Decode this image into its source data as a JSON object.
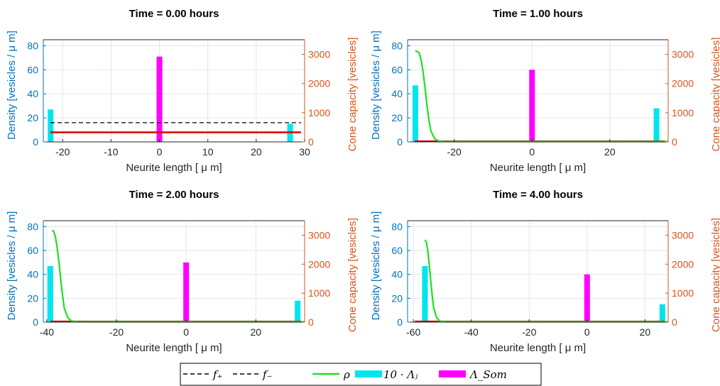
{
  "legend": {
    "items": [
      {
        "label": "f₊",
        "style": "dashed",
        "color": "#000000"
      },
      {
        "label": "f₋",
        "style": "dashed",
        "color": "#000000"
      },
      {
        "label": "ρ",
        "style": "line",
        "color": "#22dd22"
      },
      {
        "label": "10 · Λⱼ",
        "style": "bar",
        "color": "#00e5ee"
      },
      {
        "label": "Λ_Som",
        "style": "bar",
        "color": "#ff00ff"
      }
    ]
  },
  "colors": {
    "left_axis": "#0072bd",
    "right_axis": "#d95319",
    "grid": "#dfe7f0",
    "rho": "#22dd22",
    "lambda_j": "#00e5ee",
    "lambda_som": "#ff00ff",
    "red_line": "#dd0000",
    "dashed": "#000000"
  },
  "chart_data": [
    {
      "type": "bar",
      "title": "Time = 0.00 hours",
      "xlabel": "Neurite length [    μ m]",
      "ylabel": "Density [vesicles /      μ m]",
      "y2label": "Cone capacity [vesicles]",
      "xlim": [
        -24,
        30
      ],
      "xticks": [
        -20,
        -10,
        0,
        10,
        20,
        30
      ],
      "ylim": [
        0,
        85
      ],
      "yticks": [
        0,
        20,
        40,
        60,
        80
      ],
      "y2lim": [
        0,
        3500
      ],
      "y2ticks": [
        0,
        1000,
        2000,
        3000
      ],
      "grid": true,
      "lambda_j": [
        {
          "x": -22.5,
          "value": 27
        },
        {
          "x": 27,
          "value": 15
        }
      ],
      "lambda_som": {
        "x": 0,
        "value": 71
      },
      "f_plus": {
        "value": 16
      },
      "red_line": {
        "value": 8
      },
      "rho": {
        "x": [],
        "y": []
      }
    },
    {
      "type": "bar",
      "title": "Time = 1.00 hours",
      "xlabel": "Neurite length [    μ m]",
      "ylabel": "Density [vesicles /      μ m]",
      "y2label": "Cone capacity [vesicles]",
      "xlim": [
        -32,
        35
      ],
      "xticks": [
        -20,
        0,
        20
      ],
      "ylim": [
        0,
        85
      ],
      "yticks": [
        0,
        20,
        40,
        60,
        80
      ],
      "y2lim": [
        0,
        3500
      ],
      "y2ticks": [
        0,
        1000,
        2000,
        3000
      ],
      "grid": true,
      "lambda_j": [
        {
          "x": -30,
          "value": 47
        },
        {
          "x": 32,
          "value": 28
        }
      ],
      "lambda_som": {
        "x": 0,
        "value": 60
      },
      "f_plus": null,
      "red_line": {
        "value": 0.5
      },
      "rho": {
        "x": [
          -30,
          -29,
          -28.5,
          -28,
          -27.5,
          -27,
          -26.5,
          -26,
          -25,
          -24,
          -23,
          -20,
          35
        ],
        "y": [
          76,
          74,
          68,
          58,
          45,
          30,
          18,
          9,
          2.5,
          0.8,
          0.4,
          0.3,
          0.3
        ]
      }
    },
    {
      "type": "bar",
      "title": "Time = 2.00 hours",
      "xlabel": "Neurite length [    μ m]",
      "ylabel": "Density [vesicles /      μ m]",
      "y2label": "Cone capacity [vesicles]",
      "xlim": [
        -41,
        34
      ],
      "xticks": [
        -40,
        -20,
        0,
        20
      ],
      "ylim": [
        0,
        85
      ],
      "yticks": [
        0,
        20,
        40,
        60,
        80
      ],
      "y2lim": [
        0,
        3500
      ],
      "y2ticks": [
        0,
        1000,
        2000,
        3000
      ],
      "grid": true,
      "lambda_j": [
        {
          "x": -39,
          "value": 47
        },
        {
          "x": 32,
          "value": 18
        }
      ],
      "lambda_som": {
        "x": 0,
        "value": 50
      },
      "f_plus": null,
      "red_line": {
        "value": 0.5
      },
      "rho": {
        "x": [
          -38.5,
          -38,
          -37.5,
          -37,
          -36.5,
          -36,
          -35.5,
          -35,
          -34,
          -33,
          -32,
          -30,
          34
        ],
        "y": [
          77,
          76,
          71,
          62,
          50,
          36,
          23,
          12,
          4,
          1.2,
          0.5,
          0.3,
          0.3
        ]
      }
    },
    {
      "type": "bar",
      "title": "Time = 4.00 hours",
      "xlabel": "Neurite length [    μ m]",
      "ylabel": "Density [vesicles /      μ m]",
      "y2label": "Cone capacity [vesicles]",
      "xlim": [
        -62,
        28
      ],
      "xticks": [
        -60,
        -40,
        -20,
        0,
        20
      ],
      "ylim": [
        0,
        85
      ],
      "yticks": [
        0,
        20,
        40,
        60,
        80
      ],
      "y2lim": [
        0,
        3500
      ],
      "y2ticks": [
        0,
        1000,
        2000,
        3000
      ],
      "grid": true,
      "lambda_j": [
        {
          "x": -56,
          "value": 47
        },
        {
          "x": 26,
          "value": 15
        }
      ],
      "lambda_som": {
        "x": 0,
        "value": 40
      },
      "f_plus": null,
      "red_line": {
        "value": 0.5
      },
      "rho": {
        "x": [
          -56,
          -55.5,
          -55,
          -54.5,
          -54,
          -53.5,
          -53,
          -52,
          -51,
          -50,
          -48,
          28
        ],
        "y": [
          69,
          67,
          60,
          48,
          35,
          22,
          12,
          4,
          1.2,
          0.5,
          0.3,
          0.3
        ]
      }
    }
  ]
}
